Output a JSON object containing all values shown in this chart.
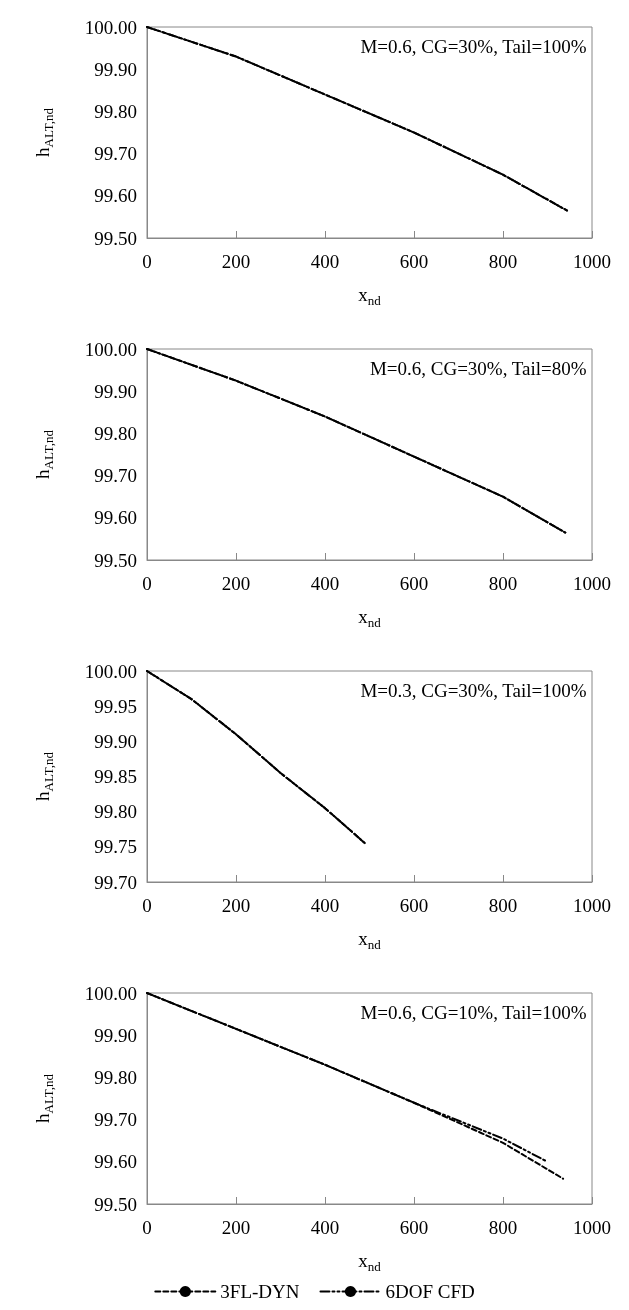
{
  "chart_data": [
    {
      "type": "line",
      "xlabel": "x$_{nd}$",
      "ylabel": "h$_{ALT,nd}$",
      "annotations": [
        "M=0.6, CG=30%, Tail=100%"
      ],
      "xlim": [
        0,
        1000
      ],
      "xticks": [
        0,
        200,
        400,
        600,
        800,
        1000
      ],
      "ylim": [
        99.5,
        100
      ],
      "yticks": [
        {
          "value": 99.5,
          "label": "99.50"
        },
        {
          "value": 99.6,
          "label": "99.60"
        },
        {
          "value": 99.7,
          "label": "99.70"
        },
        {
          "value": 99.8,
          "label": "99.80"
        },
        {
          "value": 99.9,
          "label": "99.90"
        },
        {
          "value": 100,
          "label": "100.00"
        }
      ],
      "grid": false,
      "legend": false,
      "series": [
        {
          "color": "#000000",
          "line_style": "dashed",
          "x": [
            0,
            200,
            400,
            600,
            800,
            944
          ],
          "values": [
            100,
            99.93,
            99.84,
            99.75,
            99.65,
            99.565
          ]
        },
        {
          "color": "#000000",
          "line_style": "dashdot",
          "x": [
            0,
            200,
            400,
            600,
            800,
            944
          ],
          "values": [
            100,
            99.93,
            99.84,
            99.75,
            99.65,
            99.565
          ]
        }
      ]
    },
    {
      "type": "line",
      "xlabel": "x$_{nd}$",
      "ylabel": "h$_{ALT,nd}$",
      "annotations": [
        "M=0.6, CG=30%, Tail=80%"
      ],
      "xlim": [
        0,
        1000
      ],
      "xticks": [
        0,
        200,
        400,
        600,
        800,
        1000
      ],
      "ylim": [
        99.5,
        100
      ],
      "yticks": [
        {
          "value": 99.5,
          "label": "99.50"
        },
        {
          "value": 99.6,
          "label": "99.60"
        },
        {
          "value": 99.7,
          "label": "99.70"
        },
        {
          "value": 99.8,
          "label": "99.80"
        },
        {
          "value": 99.9,
          "label": "99.90"
        },
        {
          "value": 100,
          "label": "100.00"
        }
      ],
      "grid": false,
      "legend": false,
      "series": [
        {
          "color": "#000000",
          "line_style": "dashed",
          "x": [
            0,
            200,
            400,
            600,
            800,
            940
          ],
          "values": [
            100,
            99.925,
            99.84,
            99.745,
            99.65,
            99.565
          ]
        },
        {
          "color": "#000000",
          "line_style": "dashdot",
          "x": [
            0,
            200,
            400,
            600,
            800,
            940
          ],
          "values": [
            100,
            99.925,
            99.84,
            99.745,
            99.65,
            99.565
          ]
        }
      ]
    },
    {
      "type": "line",
      "xlabel": "x$_{nd}$",
      "ylabel": "h$_{ALT,nd}$",
      "annotations": [
        "M=0.3, CG=30%, Tail=100%"
      ],
      "xlim": [
        0,
        1000
      ],
      "xticks": [
        0,
        200,
        400,
        600,
        800,
        1000
      ],
      "ylim": [
        99.7,
        100
      ],
      "yticks": [
        {
          "value": 99.7,
          "label": "99.70"
        },
        {
          "value": 99.75,
          "label": "99.75"
        },
        {
          "value": 99.8,
          "label": "99.80"
        },
        {
          "value": 99.85,
          "label": "99.85"
        },
        {
          "value": 99.9,
          "label": "99.90"
        },
        {
          "value": 99.95,
          "label": "99.95"
        },
        {
          "value": 100,
          "label": "100.00"
        }
      ],
      "grid": false,
      "legend": false,
      "series": [
        {
          "color": "#000000",
          "line_style": "dashed",
          "x": [
            0,
            100,
            200,
            300,
            400,
            490
          ],
          "values": [
            100,
            99.96,
            99.91,
            99.855,
            99.805,
            99.755
          ]
        },
        {
          "color": "#000000",
          "line_style": "dashdot",
          "x": [
            0,
            100,
            200,
            300,
            400,
            490
          ],
          "values": [
            100,
            99.96,
            99.91,
            99.855,
            99.805,
            99.755
          ]
        }
      ]
    },
    {
      "type": "line",
      "xlabel": "x$_{nd}$",
      "ylabel": "h$_{ALT,nd}$",
      "annotations": [
        "M=0.6, CG=10%, Tail=100%"
      ],
      "xlim": [
        0,
        1000
      ],
      "xticks": [
        0,
        200,
        400,
        600,
        800,
        1000
      ],
      "ylim": [
        99.5,
        100
      ],
      "yticks": [
        {
          "value": 99.5,
          "label": "99.50"
        },
        {
          "value": 99.6,
          "label": "99.60"
        },
        {
          "value": 99.7,
          "label": "99.70"
        },
        {
          "value": 99.8,
          "label": "99.80"
        },
        {
          "value": 99.9,
          "label": "99.90"
        },
        {
          "value": 100,
          "label": "100.00"
        }
      ],
      "grid": false,
      "legend": "bottom",
      "series": [
        {
          "name": "3FL-DYN",
          "color": "#000000",
          "line_style": "dashed",
          "x": [
            0,
            200,
            400,
            600,
            800,
            935
          ],
          "values": [
            100,
            99.915,
            99.83,
            99.74,
            99.645,
            99.56
          ]
        },
        {
          "name": "6DOF CFD",
          "color": "#000000",
          "line_style": "dashdot",
          "x": [
            0,
            200,
            400,
            600,
            800,
            900
          ],
          "values": [
            100,
            99.915,
            99.83,
            99.74,
            99.655,
            99.6
          ]
        }
      ]
    }
  ]
}
